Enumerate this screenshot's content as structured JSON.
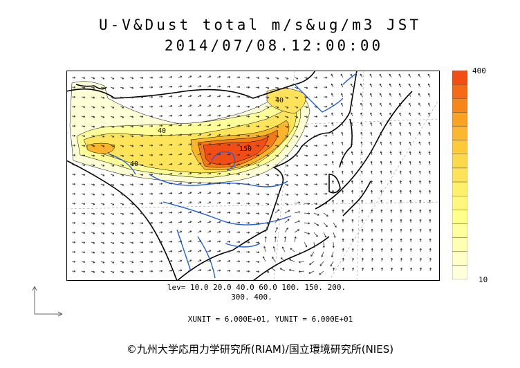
{
  "title": {
    "line1": "U-V&Dust total m/s&ug/m3 JST",
    "line2": "2014/07/08.12:00:00"
  },
  "legend": {
    "max_label": "400",
    "min_label": "10",
    "colors": [
      "#f24d14",
      "#f46a16",
      "#f7861a",
      "#f9a222",
      "#fbb82e",
      "#fcca3a",
      "#fdd84a",
      "#fee35a",
      "#fff06b",
      "#fff77d",
      "#ffff8c",
      "#ffff9f",
      "#ffffb3",
      "#ffffc7",
      "#ffffdc"
    ]
  },
  "map": {
    "contour_labels": [
      "40",
      "150",
      "40",
      "40"
    ],
    "colors": {
      "coast": "#000000",
      "river": "#1f5fe0",
      "dust_core": "#f25a16",
      "dust_edge": "#ffffb0"
    }
  },
  "levels": {
    "line1": "lev= 10.0 20.0 40.0 60.0 100. 150. 200.",
    "line2": "300. 400."
  },
  "units": "XUNIT = 6.000E+01, YUNIT = 6.000E+01",
  "copyright": "©九州大学応用力学研究所(RIAM)/国立環境研究所(NIES)"
}
